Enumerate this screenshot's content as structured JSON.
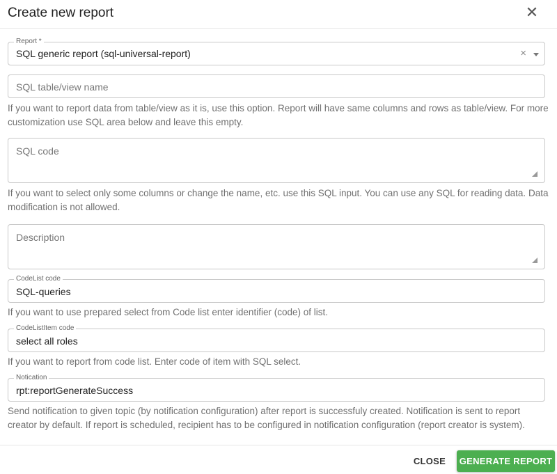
{
  "dialog": {
    "title": "Create new report",
    "close_icon": "close-icon"
  },
  "report": {
    "label": "Report *",
    "value": "SQL generic report (sql-universal-report)",
    "clear_glyph": "×"
  },
  "sql_table": {
    "placeholder": "SQL table/view name",
    "help": "If you want to report data from table/view as it is, use this option. Report will have same columns and rows as table/view. For more customization use SQL area below and leave this empty."
  },
  "sql_code": {
    "placeholder": "SQL code",
    "help": "If you want to select only some columns or change the name, etc. use this SQL input. You can use any SQL for reading data. Data modification is not allowed."
  },
  "description": {
    "placeholder": "Description"
  },
  "codelist": {
    "label": "CodeList code",
    "value": "SQL-queries",
    "help": "If you want to use prepared select from Code list enter identifier (code) of list."
  },
  "codelistitem": {
    "label": "CodeListItem code",
    "value": "select all roles",
    "help": "If you want to report from code list. Enter code of item with SQL select."
  },
  "notification": {
    "label": "Notication",
    "value": "rpt:reportGenerateSuccess",
    "help": "Send notification to given topic (by notification configuration) after report is successfuly created. Notification is sent to report creator by default. If report is scheduled, recipient has to be configured in notification configuration (report creator is system)."
  },
  "footer": {
    "close_label": "CLOSE",
    "generate_label": "GENERATE REPORT",
    "generate_color": "#4caf50"
  }
}
